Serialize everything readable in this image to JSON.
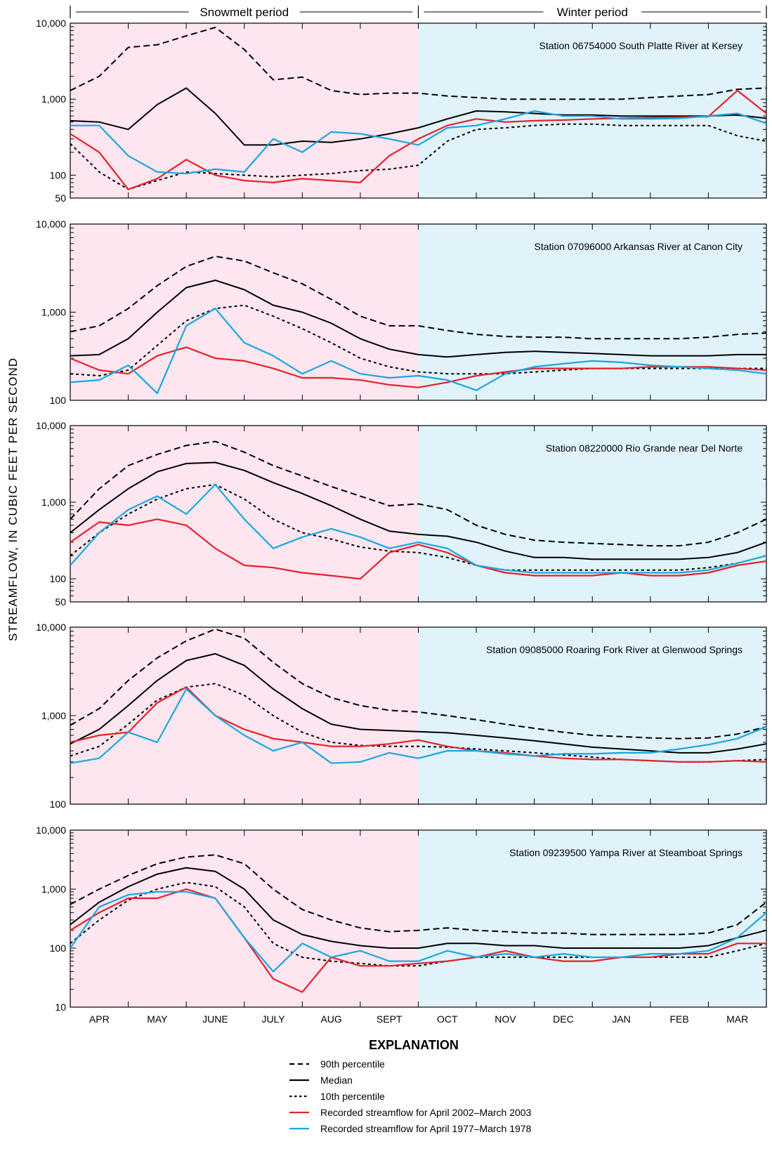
{
  "y_axis_label": "STREAMFLOW, IN CUBIC FEET PER SECOND",
  "periods": [
    {
      "label": "Snowmelt period",
      "months": 6,
      "color": "#fde6ef"
    },
    {
      "label": "Winter period",
      "months": 6,
      "color": "#e0f3fb"
    }
  ],
  "months": [
    "APR",
    "MAY",
    "JUNE",
    "JULY",
    "AUG",
    "SEPT",
    "OCT",
    "NOV",
    "DEC",
    "JAN",
    "FEB",
    "MAR"
  ],
  "legend": {
    "title": "EXPLANATION",
    "items": [
      {
        "label": "90th percentile",
        "style": "dashed",
        "color": "#000000"
      },
      {
        "label": "Median",
        "style": "solid",
        "color": "#000000"
      },
      {
        "label": "10th percentile",
        "style": "dotted",
        "color": "#000000"
      },
      {
        "label": "Recorded streamflow for April 2002–March 2003",
        "style": "solid",
        "color": "#e8202a"
      },
      {
        "label": "Recorded streamflow for April 1977–March 1978",
        "style": "solid",
        "color": "#1ba6e0"
      }
    ]
  },
  "chart_data": [
    {
      "type": "line",
      "yscale": "log",
      "ylim": [
        50,
        10000
      ],
      "yticks": [
        50,
        100,
        1000,
        10000
      ],
      "ytick_labels": [
        "50",
        "100",
        "1,000",
        "10,000"
      ],
      "title": "Station 06754000 South Platte River at Kersey",
      "x": [
        "Apr 1",
        "Apr 16",
        "May 1",
        "May 16",
        "Jun 1",
        "Jun 16",
        "Jul 1",
        "Jul 16",
        "Aug 1",
        "Aug 16",
        "Sep 1",
        "Sep 16",
        "Oct 1",
        "Oct 16",
        "Nov 1",
        "Nov 16",
        "Dec 1",
        "Dec 16",
        "Jan 1",
        "Jan 16",
        "Feb 1",
        "Feb 16",
        "Mar 1",
        "Mar 16",
        "Mar 31"
      ],
      "series": [
        {
          "name": "90th percentile",
          "values": [
            1300,
            2000,
            4800,
            5200,
            6800,
            8800,
            4500,
            1800,
            1950,
            1300,
            1150,
            1200,
            1200,
            1100,
            1050,
            1000,
            1000,
            1000,
            1000,
            1000,
            1050,
            1100,
            1150,
            1350,
            1400
          ]
        },
        {
          "name": "Median",
          "values": [
            520,
            500,
            400,
            850,
            1400,
            650,
            250,
            250,
            280,
            270,
            300,
            350,
            420,
            550,
            700,
            680,
            650,
            620,
            620,
            600,
            600,
            600,
            600,
            620,
            560
          ]
        },
        {
          "name": "10th percentile",
          "values": [
            260,
            110,
            65,
            85,
            110,
            105,
            100,
            95,
            100,
            105,
            115,
            120,
            135,
            280,
            400,
            420,
            450,
            470,
            470,
            450,
            450,
            450,
            450,
            330,
            280
          ]
        },
        {
          "name": "Recorded streamflow for April 2002–March 2003",
          "values": [
            350,
            200,
            65,
            90,
            160,
            100,
            85,
            80,
            90,
            85,
            80,
            180,
            300,
            450,
            550,
            500,
            520,
            530,
            550,
            560,
            570,
            580,
            590,
            1300,
            650
          ]
        },
        {
          "name": "Recorded streamflow for April 1977–March 1978",
          "values": [
            450,
            450,
            180,
            110,
            105,
            120,
            110,
            300,
            200,
            370,
            350,
            300,
            250,
            420,
            450,
            550,
            700,
            600,
            600,
            550,
            550,
            560,
            600,
            650,
            480
          ]
        }
      ]
    },
    {
      "type": "line",
      "yscale": "log",
      "ylim": [
        100,
        10000
      ],
      "yticks": [
        100,
        1000,
        10000
      ],
      "ytick_labels": [
        "100",
        "1,000",
        "10,000"
      ],
      "title": "Station 07096000 Arkansas River at Canon City",
      "x": [
        "Apr 1",
        "Apr 16",
        "May 1",
        "May 16",
        "Jun 1",
        "Jun 16",
        "Jul 1",
        "Jul 16",
        "Aug 1",
        "Aug 16",
        "Sep 1",
        "Sep 16",
        "Oct 1",
        "Oct 16",
        "Nov 1",
        "Nov 16",
        "Dec 1",
        "Dec 16",
        "Jan 1",
        "Jan 16",
        "Feb 1",
        "Feb 16",
        "Mar 1",
        "Mar 16",
        "Mar 31"
      ],
      "series": [
        {
          "name": "90th percentile",
          "values": [
            600,
            700,
            1100,
            2000,
            3300,
            4300,
            3800,
            2800,
            2100,
            1400,
            900,
            700,
            700,
            620,
            560,
            530,
            520,
            520,
            500,
            500,
            500,
            500,
            520,
            560,
            580
          ]
        },
        {
          "name": "Median",
          "values": [
            320,
            330,
            500,
            1000,
            1900,
            2300,
            1800,
            1200,
            1000,
            750,
            500,
            380,
            330,
            310,
            330,
            350,
            360,
            350,
            340,
            330,
            320,
            320,
            320,
            330,
            330
          ]
        },
        {
          "name": "10th percentile",
          "values": [
            200,
            190,
            220,
            420,
            800,
            1100,
            1200,
            900,
            650,
            450,
            300,
            240,
            210,
            200,
            200,
            200,
            210,
            220,
            230,
            230,
            230,
            230,
            230,
            230,
            230
          ]
        },
        {
          "name": "Recorded streamflow for April 2002–March 2003",
          "values": [
            300,
            220,
            200,
            320,
            400,
            300,
            280,
            230,
            180,
            180,
            170,
            150,
            140,
            160,
            190,
            210,
            230,
            230,
            230,
            230,
            240,
            240,
            240,
            230,
            220
          ]
        },
        {
          "name": "Recorded streamflow for April 1977–March 1978",
          "values": [
            160,
            170,
            250,
            120,
            700,
            1100,
            450,
            320,
            200,
            280,
            200,
            180,
            190,
            170,
            130,
            200,
            240,
            260,
            280,
            270,
            250,
            240,
            230,
            220,
            200
          ]
        }
      ]
    },
    {
      "type": "line",
      "yscale": "log",
      "ylim": [
        50,
        10000
      ],
      "yticks": [
        50,
        100,
        1000,
        10000
      ],
      "ytick_labels": [
        "50",
        "100",
        "1,000",
        "10,000"
      ],
      "title": "Station 08220000 Rio Grande near Del Norte",
      "x": [
        "Apr 1",
        "Apr 16",
        "May 1",
        "May 16",
        "Jun 1",
        "Jun 16",
        "Jul 1",
        "Jul 16",
        "Aug 1",
        "Aug 16",
        "Sep 1",
        "Sep 16",
        "Oct 1",
        "Oct 16",
        "Nov 1",
        "Nov 16",
        "Dec 1",
        "Dec 16",
        "Jan 1",
        "Jan 16",
        "Feb 1",
        "Feb 16",
        "Mar 1",
        "Mar 16",
        "Mar 31"
      ],
      "series": [
        {
          "name": "90th percentile",
          "values": [
            600,
            1500,
            3000,
            4200,
            5500,
            6200,
            4500,
            3000,
            2200,
            1600,
            1200,
            900,
            950,
            800,
            500,
            380,
            320,
            300,
            290,
            280,
            270,
            270,
            300,
            400,
            600
          ]
        },
        {
          "name": "Median",
          "values": [
            400,
            800,
            1500,
            2500,
            3200,
            3300,
            2600,
            1800,
            1300,
            900,
            600,
            420,
            380,
            360,
            300,
            230,
            190,
            190,
            180,
            180,
            180,
            180,
            190,
            220,
            300
          ]
        },
        {
          "name": "10th percentile",
          "values": [
            200,
            400,
            700,
            1100,
            1500,
            1700,
            1100,
            600,
            400,
            330,
            260,
            230,
            220,
            190,
            150,
            130,
            130,
            130,
            130,
            130,
            130,
            130,
            140,
            160,
            200
          ]
        },
        {
          "name": "Recorded streamflow for April 2002–March 2003",
          "values": [
            300,
            550,
            500,
            600,
            500,
            250,
            150,
            140,
            120,
            110,
            100,
            220,
            280,
            220,
            150,
            120,
            110,
            110,
            110,
            120,
            110,
            110,
            120,
            150,
            170
          ]
        },
        {
          "name": "Recorded streamflow for April 1977–March 1978",
          "values": [
            150,
            400,
            800,
            1200,
            700,
            1700,
            600,
            250,
            350,
            450,
            350,
            250,
            300,
            250,
            150,
            130,
            120,
            120,
            120,
            120,
            120,
            120,
            130,
            160,
            200
          ]
        }
      ]
    },
    {
      "type": "line",
      "yscale": "log",
      "ylim": [
        100,
        10000
      ],
      "yticks": [
        100,
        1000,
        10000
      ],
      "ytick_labels": [
        "100",
        "1,000",
        "10,000"
      ],
      "title": "Station 09085000 Roaring Fork River at Glenwood Springs",
      "x": [
        "Apr 1",
        "Apr 16",
        "May 1",
        "May 16",
        "Jun 1",
        "Jun 16",
        "Jul 1",
        "Jul 16",
        "Aug 1",
        "Aug 16",
        "Sep 1",
        "Sep 16",
        "Oct 1",
        "Oct 16",
        "Nov 1",
        "Nov 16",
        "Dec 1",
        "Dec 16",
        "Jan 1",
        "Jan 16",
        "Feb 1",
        "Feb 16",
        "Mar 1",
        "Mar 16",
        "Mar 31"
      ],
      "series": [
        {
          "name": "90th percentile",
          "values": [
            780,
            1200,
            2500,
            4500,
            7000,
            9500,
            7500,
            4000,
            2300,
            1600,
            1300,
            1150,
            1100,
            1000,
            900,
            800,
            720,
            650,
            600,
            580,
            560,
            550,
            560,
            620,
            750
          ]
        },
        {
          "name": "Median",
          "values": [
            480,
            700,
            1300,
            2500,
            4200,
            5000,
            3700,
            2000,
            1200,
            800,
            700,
            680,
            660,
            640,
            600,
            560,
            520,
            480,
            440,
            420,
            400,
            380,
            380,
            420,
            480
          ]
        },
        {
          "name": "10th percentile",
          "values": [
            350,
            450,
            800,
            1500,
            2100,
            2300,
            1700,
            1000,
            650,
            500,
            460,
            450,
            450,
            440,
            420,
            400,
            380,
            360,
            340,
            320,
            310,
            300,
            300,
            310,
            320
          ]
        },
        {
          "name": "Recorded streamflow for April 2002–March 2003",
          "values": [
            500,
            600,
            650,
            1400,
            2100,
            1000,
            700,
            550,
            500,
            450,
            450,
            480,
            530,
            450,
            400,
            380,
            350,
            330,
            320,
            320,
            310,
            300,
            300,
            310,
            300
          ]
        },
        {
          "name": "Recorded streamflow for April 1977–March 1978",
          "values": [
            290,
            330,
            650,
            500,
            2000,
            1000,
            600,
            400,
            500,
            290,
            300,
            380,
            330,
            400,
            400,
            370,
            350,
            370,
            370,
            380,
            380,
            420,
            470,
            550,
            750
          ]
        }
      ]
    },
    {
      "type": "line",
      "yscale": "log",
      "ylim": [
        10,
        10000
      ],
      "yticks": [
        10,
        100,
        1000,
        10000
      ],
      "ytick_labels": [
        "10",
        "100",
        "1,000",
        "10,000"
      ],
      "title": "Station 09239500 Yampa River at Steamboat Springs",
      "x": [
        "Apr 1",
        "Apr 16",
        "May 1",
        "May 16",
        "Jun 1",
        "Jun 16",
        "Jul 1",
        "Jul 16",
        "Aug 1",
        "Aug 16",
        "Sep 1",
        "Sep 16",
        "Oct 1",
        "Oct 16",
        "Nov 1",
        "Nov 16",
        "Dec 1",
        "Dec 16",
        "Jan 1",
        "Jan 16",
        "Feb 1",
        "Feb 16",
        "Mar 1",
        "Mar 16",
        "Mar 31"
      ],
      "series": [
        {
          "name": "90th percentile",
          "values": [
            550,
            1000,
            1700,
            2700,
            3500,
            3800,
            2700,
            1000,
            450,
            300,
            220,
            190,
            200,
            220,
            200,
            190,
            180,
            180,
            170,
            170,
            170,
            170,
            180,
            250,
            600
          ]
        },
        {
          "name": "Median",
          "values": [
            250,
            600,
            1100,
            1800,
            2300,
            2000,
            1000,
            300,
            170,
            130,
            110,
            100,
            100,
            120,
            120,
            110,
            110,
            100,
            100,
            100,
            100,
            100,
            110,
            150,
            200
          ]
        },
        {
          "name": "10th percentile",
          "values": [
            120,
            300,
            650,
            1000,
            1300,
            1100,
            500,
            120,
            70,
            60,
            55,
            50,
            50,
            60,
            70,
            70,
            70,
            70,
            70,
            70,
            70,
            70,
            70,
            90,
            120
          ]
        },
        {
          "name": "Recorded streamflow for April 2002–March 2003",
          "values": [
            200,
            400,
            700,
            700,
            1000,
            700,
            150,
            30,
            18,
            70,
            50,
            50,
            55,
            60,
            70,
            90,
            70,
            60,
            60,
            70,
            70,
            80,
            80,
            120,
            120
          ]
        },
        {
          "name": "Recorded streamflow for April 1977–March 1978",
          "values": [
            100,
            500,
            800,
            900,
            900,
            700,
            150,
            40,
            120,
            70,
            90,
            60,
            60,
            90,
            70,
            80,
            70,
            80,
            70,
            70,
            80,
            80,
            90,
            150,
            400
          ]
        }
      ]
    }
  ]
}
